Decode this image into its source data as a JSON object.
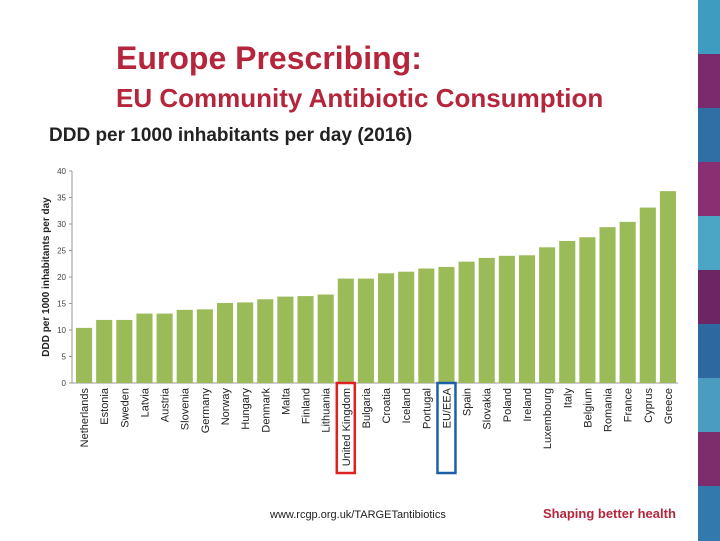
{
  "slide": {
    "title": "Europe Prescribing:",
    "subtitle_title": "EU Community Antibiotic Consumption",
    "chart_caption": "DDD per 1000 inhabitants per day (2016)",
    "footer_url": "www.rcgp.org.uk/TARGETantibiotics",
    "tagline": "Shaping better health"
  },
  "colors": {
    "title": "#b5263c",
    "bar": "#9bbb59",
    "highlight_uk": "#e02020",
    "highlight_eu": "#1f5fa8"
  },
  "right_strip_colors": [
    "#3e9cc1",
    "#7b2a6d",
    "#2f6fa5",
    "#8a2f72",
    "#4aa6c4",
    "#6e2564",
    "#2d68a0",
    "#4a9cc0",
    "#7d2d6c",
    "#3279ad"
  ],
  "chart_data": {
    "type": "bar",
    "title": "DDD per 1000 inhabitants per day (2016)",
    "xlabel": "",
    "ylabel": "DDD per 1000 inhabitants per day",
    "ylim": [
      0,
      40
    ],
    "yticks": [
      "0",
      "5",
      "10",
      "15",
      "20",
      "25",
      "30",
      "35",
      "40"
    ],
    "grid": false,
    "categories": [
      "Netherlands",
      "Estonia",
      "Sweden",
      "Latvia",
      "Austria",
      "Slovenia",
      "Germany",
      "Norway",
      "Hungary",
      "Denmark",
      "Malta",
      "Finland",
      "Lithuania",
      "United Kingdom",
      "Bulgaria",
      "Croatia",
      "Iceland",
      "Portugal",
      "EU/EEA",
      "Spain",
      "Slovakia",
      "Poland",
      "Ireland",
      "Luxembourg",
      "Italy",
      "Belgium",
      "Romania",
      "France",
      "Cyprus",
      "Greece"
    ],
    "values": [
      10.4,
      11.9,
      11.9,
      13.1,
      13.1,
      13.8,
      13.9,
      15.1,
      15.2,
      15.8,
      16.3,
      16.4,
      16.7,
      19.7,
      19.7,
      20.7,
      21.0,
      21.6,
      21.9,
      22.9,
      23.6,
      24.0,
      24.1,
      25.6,
      26.8,
      27.5,
      29.4,
      30.4,
      33.1,
      36.2
    ],
    "highlights": [
      {
        "category": "United Kingdom",
        "color": "#e02020"
      },
      {
        "category": "EU/EEA",
        "color": "#1f5fa8"
      }
    ]
  }
}
